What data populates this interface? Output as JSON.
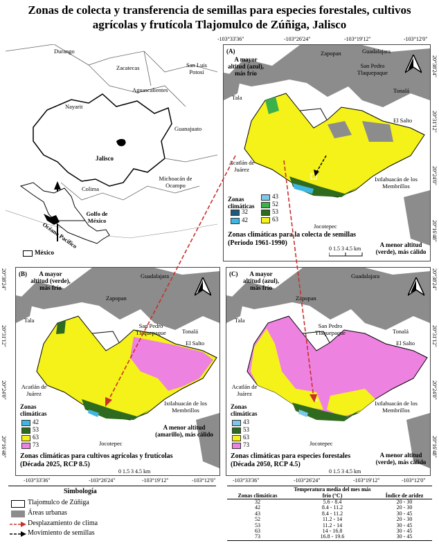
{
  "title": {
    "line1": "Zonas de colecta y transferencia de semillas para especies forestales, cultivos",
    "line2": "agrícolas y frutícola Tlajomulco de Zúñiga, Jalisco"
  },
  "overview": {
    "places": [
      "Durango",
      "Zacatecas",
      "San Luis Potosí",
      "Nayarit",
      "Aguascalientes",
      "Guanajuato",
      "Jalisco",
      "Michoacán de Ocampo",
      "Colima",
      "Golfo de México",
      "Océano Pacífico"
    ],
    "legend_mexico": "México"
  },
  "coords": {
    "top": [
      "-103°33'36\"",
      "-103°26'24\"",
      "-103°19'12\"",
      "-103°12'0\""
    ],
    "bottom": [
      "-103°33'36\"",
      "-103°26'24\"",
      "-103°19'12\"",
      "-103°12'0\""
    ],
    "right": [
      "20°38'24\"",
      "20°31'12\"",
      "20°24'0\"",
      "20°16'48\""
    ],
    "left": [
      "20°38'24\"",
      "20°31'12\"",
      "20°24'0\"",
      "20°16'48\""
    ]
  },
  "places": {
    "guadalajara": "Guadalajara",
    "zapopan": "Zapopan",
    "san_pedro": "San Pedro Tlaquepaque",
    "tonala": "Tonalá",
    "tala": "Tala",
    "el_salto": "El Salto",
    "acatlan": "Acatlán de Juárez",
    "ixtlahuacan": "Ixtlahuacán de los Membrillos",
    "jocotepec": "Jocotepec"
  },
  "panels": {
    "A": {
      "letter": "(A)",
      "top_note": "A mayor altitud (azul), más frío",
      "bottom_note": "A menor altitud (verde), más cálido",
      "caption1": "Zonas climáticas para la colecta de semillas",
      "caption2": "(Periodo 1961-1990)",
      "zones": [
        "32",
        "43",
        "42",
        "52",
        "53",
        "63"
      ]
    },
    "B": {
      "letter": "(B)",
      "top_note": "A mayor altitud (verde), más frío",
      "bottom_note": "A menor altitud (amarillo), más cálido",
      "caption1": "Zonas climáticas para  cultivos agrícolas y frutícolas",
      "caption2": "(Década 2025, RCP 8.5)",
      "zones": [
        "42",
        "53",
        "63",
        "73"
      ]
    },
    "C": {
      "letter": "(C)",
      "top_note": "A mayor altitud (azul), más frío",
      "bottom_note": "A menor altitud (verde), más cálido",
      "caption1": "Zonas climáticas para especies forestales",
      "caption2": "(Década 2050, RCP 4.5)",
      "zones": [
        "43",
        "53",
        "63",
        "73"
      ]
    }
  },
  "zones_title": "Zonas climáticas",
  "scale": {
    "ticks": "0 1.5 3 4.5 km"
  },
  "colors": {
    "z32": "#1f5a7a",
    "z42": "#3fb7e3",
    "z43": "#7cc8ea",
    "z52": "#3cb04a",
    "z53": "#2e6b1e",
    "z63": "#f5f21a",
    "z73": "#ee82e0",
    "urban": "#8c8c8c"
  },
  "simbologia": {
    "title": "Simbología",
    "items": [
      "Tlajomulco de Zúñiga",
      "Áreas urbanas",
      "Desplazamiento de clima",
      "Movimiento de semillas"
    ]
  },
  "table": {
    "headers": [
      "Zonas climáticas",
      "Temperatura media del mes más frío (°C)",
      "Índice de aridez"
    ],
    "rows": [
      [
        "32",
        "5.6 - 8.4",
        "20 - 30"
      ],
      [
        "42",
        "8.4 - 11.2",
        "20 - 30"
      ],
      [
        "43",
        "8.4 - 11.2",
        "30 - 45"
      ],
      [
        "52",
        "11.2 - 14",
        "20 - 30"
      ],
      [
        "53",
        "11.2 - 14",
        "30 - 45"
      ],
      [
        "63",
        "14 - 16.8",
        "30 - 45"
      ],
      [
        "73",
        "16.8 - 19.6",
        "30 - 45"
      ]
    ]
  }
}
